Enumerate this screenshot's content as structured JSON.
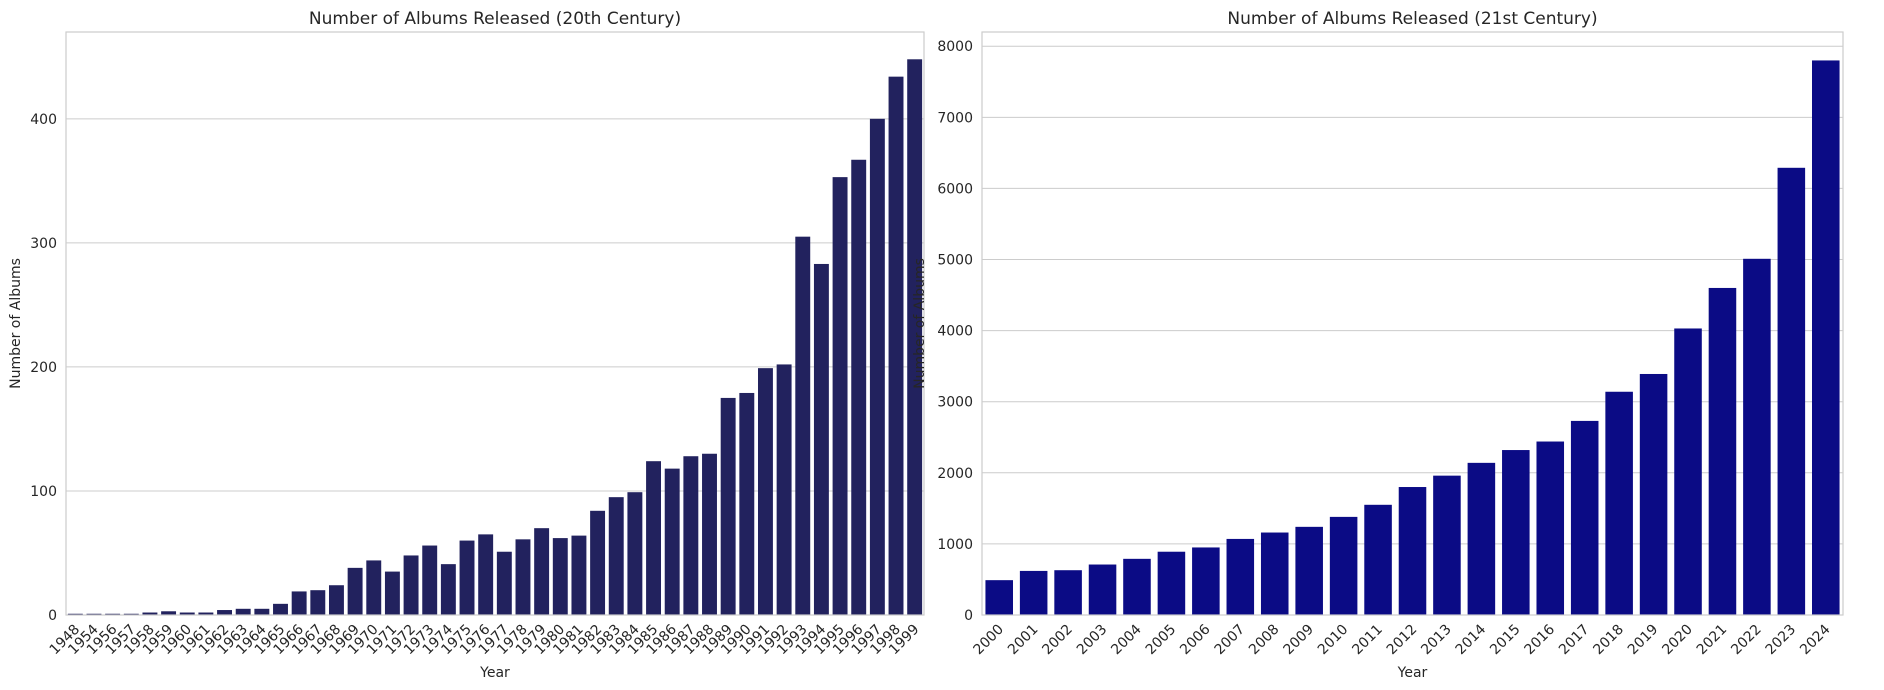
{
  "chart_data": [
    {
      "type": "bar",
      "title": "Number of Albums Released (20th Century)",
      "xlabel": "Year",
      "ylabel": "Number of Albums",
      "ylim": [
        0,
        470
      ],
      "yticks": [
        0,
        100,
        200,
        300,
        400
      ],
      "grid": "horizontal",
      "bar_color": "#22225e",
      "categories": [
        "1948",
        "1954",
        "1956",
        "1957",
        "1958",
        "1959",
        "1960",
        "1961",
        "1962",
        "1963",
        "1964",
        "1965",
        "1966",
        "1967",
        "1968",
        "1969",
        "1970",
        "1971",
        "1972",
        "1973",
        "1974",
        "1975",
        "1976",
        "1977",
        "1978",
        "1979",
        "1980",
        "1981",
        "1982",
        "1983",
        "1984",
        "1985",
        "1986",
        "1987",
        "1988",
        "1989",
        "1990",
        "1991",
        "1992",
        "1993",
        "1994",
        "1995",
        "1996",
        "1997",
        "1998",
        "1999"
      ],
      "values": [
        1,
        1,
        1,
        1,
        2,
        3,
        2,
        2,
        4,
        5,
        5,
        9,
        19,
        20,
        24,
        38,
        44,
        35,
        48,
        56,
        41,
        60,
        65,
        51,
        61,
        70,
        62,
        64,
        84,
        95,
        99,
        124,
        118,
        128,
        130,
        175,
        179,
        199,
        202,
        305,
        283,
        353,
        367,
        400,
        434,
        448
      ]
    },
    {
      "type": "bar",
      "title": "Number of Albums Released (21st Century)",
      "xlabel": "Year",
      "ylabel": "Number of Albums",
      "ylim": [
        0,
        8200
      ],
      "yticks": [
        0,
        1000,
        2000,
        3000,
        4000,
        5000,
        6000,
        7000,
        8000
      ],
      "grid": "horizontal",
      "bar_color": "#0b0b85",
      "categories": [
        "2000",
        "2001",
        "2002",
        "2003",
        "2004",
        "2005",
        "2006",
        "2007",
        "2008",
        "2009",
        "2010",
        "2011",
        "2012",
        "2013",
        "2014",
        "2015",
        "2016",
        "2017",
        "2018",
        "2019",
        "2020",
        "2021",
        "2022",
        "2023",
        "2024"
      ],
      "values": [
        490,
        620,
        630,
        710,
        790,
        890,
        950,
        1070,
        1160,
        1240,
        1380,
        1550,
        1800,
        1960,
        2140,
        2320,
        2440,
        2730,
        3140,
        3390,
        4030,
        4600,
        5010,
        6290,
        7800
      ]
    }
  ]
}
